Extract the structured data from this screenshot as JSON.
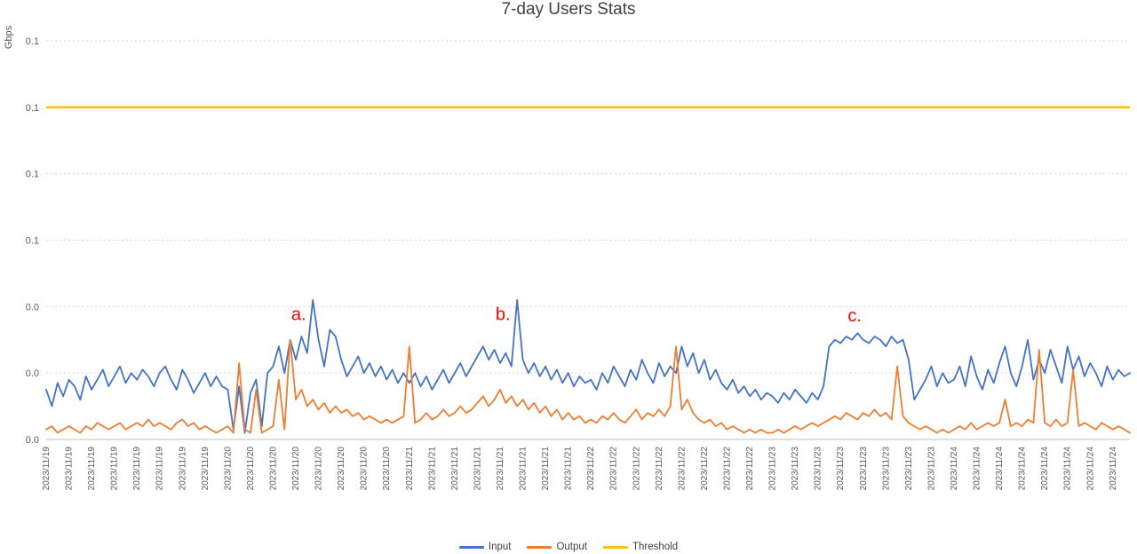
{
  "chart_data": {
    "type": "line",
    "title": "7-day Users Stats",
    "ylabel": "Gbps",
    "xlabel": "",
    "grid": "horizontal-dashed",
    "legend_position": "bottom",
    "annotation_color": "#FF0000",
    "y_axis": {
      "min": 0,
      "max": 0.12,
      "tick_step": 0.02,
      "tick_labels_top_to_bottom": [
        "0.1",
        "0.1",
        "0.1",
        "0.1",
        "0.0",
        "0.0",
        "0.0"
      ]
    },
    "x_days": [
      "2023/11/19",
      "2023/11/20",
      "2023/11/21",
      "2023/11/22",
      "2023/11/23",
      "2023/11/24"
    ],
    "points_per_day": 32,
    "x_tick_every": 4,
    "x_tick_label_repeat_per_day": 8,
    "series": [
      {
        "name": "Input",
        "color": "#4472C4",
        "values": [
          0.015,
          0.01,
          0.017,
          0.013,
          0.018,
          0.016,
          0.012,
          0.019,
          0.015,
          0.018,
          0.021,
          0.016,
          0.019,
          0.022,
          0.017,
          0.02,
          0.018,
          0.021,
          0.019,
          0.016,
          0.02,
          0.022,
          0.018,
          0.015,
          0.021,
          0.018,
          0.014,
          0.017,
          0.02,
          0.016,
          0.019,
          0.016,
          0.015,
          0.003,
          0.016,
          0.002,
          0.014,
          0.018,
          0.004,
          0.02,
          0.022,
          0.028,
          0.02,
          0.03,
          0.024,
          0.031,
          0.026,
          0.042,
          0.03,
          0.022,
          0.033,
          0.031,
          0.024,
          0.019,
          0.022,
          0.025,
          0.02,
          0.023,
          0.019,
          0.022,
          0.018,
          0.021,
          0.017,
          0.02,
          0.017,
          0.02,
          0.016,
          0.019,
          0.015,
          0.018,
          0.021,
          0.017,
          0.02,
          0.023,
          0.019,
          0.022,
          0.025,
          0.028,
          0.024,
          0.027,
          0.023,
          0.026,
          0.022,
          0.042,
          0.024,
          0.02,
          0.023,
          0.019,
          0.022,
          0.018,
          0.021,
          0.017,
          0.02,
          0.016,
          0.019,
          0.017,
          0.018,
          0.015,
          0.02,
          0.017,
          0.022,
          0.019,
          0.016,
          0.021,
          0.018,
          0.024,
          0.02,
          0.017,
          0.023,
          0.019,
          0.022,
          0.02,
          0.028,
          0.022,
          0.026,
          0.02,
          0.024,
          0.018,
          0.021,
          0.017,
          0.015,
          0.018,
          0.014,
          0.016,
          0.013,
          0.015,
          0.012,
          0.014,
          0.013,
          0.011,
          0.014,
          0.012,
          0.015,
          0.013,
          0.011,
          0.014,
          0.012,
          0.016,
          0.028,
          0.03,
          0.029,
          0.031,
          0.03,
          0.032,
          0.03,
          0.029,
          0.031,
          0.03,
          0.028,
          0.031,
          0.029,
          0.03,
          0.024,
          0.012,
          0.015,
          0.018,
          0.022,
          0.016,
          0.02,
          0.017,
          0.018,
          0.022,
          0.016,
          0.025,
          0.019,
          0.015,
          0.021,
          0.017,
          0.023,
          0.028,
          0.02,
          0.016,
          0.022,
          0.03,
          0.018,
          0.024,
          0.02,
          0.027,
          0.022,
          0.017,
          0.028,
          0.021,
          0.025,
          0.019,
          0.023,
          0.02,
          0.016,
          0.022,
          0.018,
          0.021,
          0.019,
          0.02
        ]
      },
      {
        "name": "Output",
        "color": "#ED7D31",
        "values": [
          0.003,
          0.004,
          0.002,
          0.003,
          0.004,
          0.003,
          0.002,
          0.004,
          0.003,
          0.005,
          0.004,
          0.003,
          0.004,
          0.005,
          0.003,
          0.004,
          0.005,
          0.004,
          0.006,
          0.004,
          0.005,
          0.004,
          0.003,
          0.005,
          0.006,
          0.004,
          0.005,
          0.003,
          0.004,
          0.003,
          0.002,
          0.003,
          0.004,
          0.002,
          0.023,
          0.003,
          0.002,
          0.015,
          0.002,
          0.003,
          0.004,
          0.018,
          0.003,
          0.03,
          0.012,
          0.015,
          0.01,
          0.012,
          0.009,
          0.011,
          0.008,
          0.01,
          0.008,
          0.009,
          0.007,
          0.008,
          0.006,
          0.007,
          0.006,
          0.005,
          0.006,
          0.005,
          0.006,
          0.007,
          0.028,
          0.005,
          0.006,
          0.008,
          0.006,
          0.007,
          0.009,
          0.007,
          0.008,
          0.01,
          0.008,
          0.009,
          0.011,
          0.013,
          0.01,
          0.012,
          0.015,
          0.011,
          0.013,
          0.01,
          0.012,
          0.009,
          0.011,
          0.008,
          0.01,
          0.007,
          0.009,
          0.006,
          0.008,
          0.006,
          0.007,
          0.005,
          0.006,
          0.005,
          0.007,
          0.006,
          0.008,
          0.006,
          0.005,
          0.007,
          0.009,
          0.006,
          0.008,
          0.007,
          0.009,
          0.007,
          0.01,
          0.028,
          0.009,
          0.012,
          0.008,
          0.006,
          0.005,
          0.006,
          0.004,
          0.005,
          0.003,
          0.004,
          0.003,
          0.002,
          0.003,
          0.002,
          0.003,
          0.002,
          0.002,
          0.003,
          0.002,
          0.003,
          0.004,
          0.003,
          0.004,
          0.005,
          0.004,
          0.005,
          0.006,
          0.007,
          0.006,
          0.008,
          0.007,
          0.006,
          0.008,
          0.007,
          0.009,
          0.007,
          0.008,
          0.006,
          0.022,
          0.007,
          0.005,
          0.004,
          0.003,
          0.004,
          0.003,
          0.002,
          0.003,
          0.002,
          0.003,
          0.004,
          0.003,
          0.005,
          0.003,
          0.004,
          0.005,
          0.004,
          0.005,
          0.012,
          0.004,
          0.005,
          0.004,
          0.006,
          0.005,
          0.027,
          0.005,
          0.004,
          0.006,
          0.004,
          0.005,
          0.021,
          0.004,
          0.005,
          0.004,
          0.003,
          0.005,
          0.004,
          0.003,
          0.004,
          0.003,
          0.002
        ]
      },
      {
        "name": "Threshold",
        "color": "#FFC000",
        "constant": 0.1
      }
    ],
    "annotations": [
      {
        "label": "a.",
        "x_index": 44.5,
        "y_value": 0.036
      },
      {
        "label": "b.",
        "x_index": 80.5,
        "y_value": 0.036
      },
      {
        "label": "c.",
        "x_index": 142.5,
        "y_value": 0.0355
      }
    ]
  }
}
